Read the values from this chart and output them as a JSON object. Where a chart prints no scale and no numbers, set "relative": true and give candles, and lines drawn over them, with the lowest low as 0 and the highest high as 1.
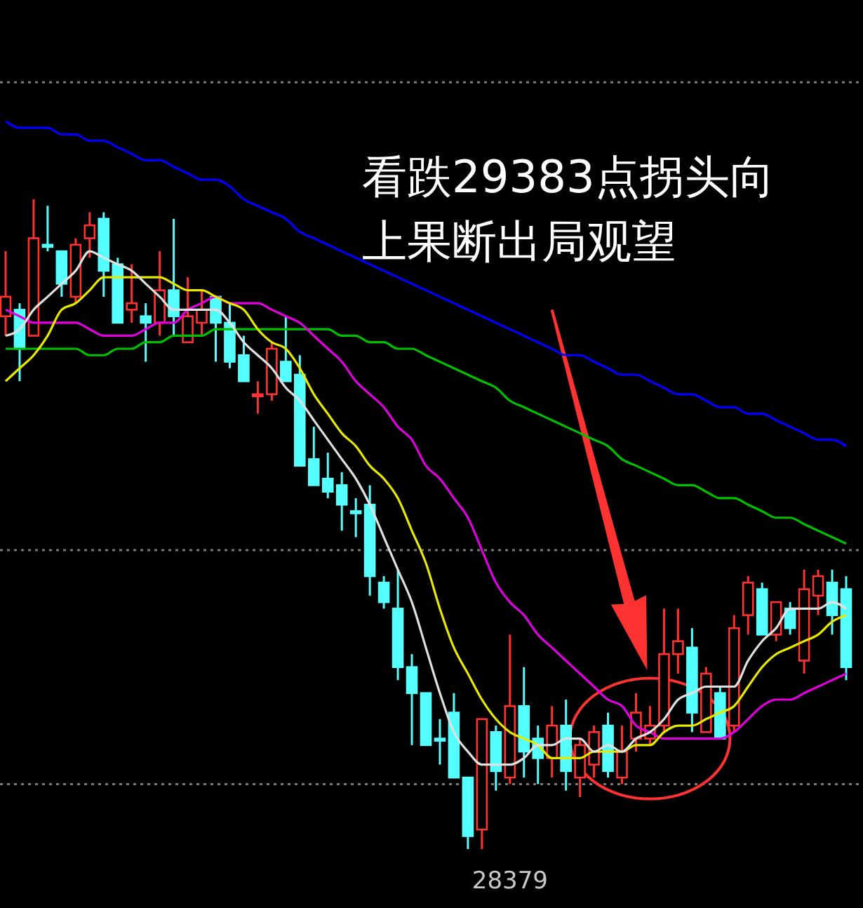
{
  "chart_data": {
    "type": "candlestick",
    "relative": true,
    "categories": [
      null,
      null,
      null,
      null,
      null,
      null,
      null,
      null,
      null,
      null,
      null,
      null,
      null,
      null,
      null,
      null,
      null,
      null,
      null,
      null,
      null,
      null,
      null,
      null,
      null,
      null,
      null,
      null,
      null,
      null,
      null,
      null,
      null,
      null,
      null,
      null,
      null,
      null,
      null,
      null,
      null,
      null,
      null,
      null,
      null,
      null,
      null,
      null,
      null,
      null,
      null,
      null,
      null,
      null,
      null,
      null,
      null,
      null,
      null,
      null,
      null
    ],
    "ohlc": [
      [
        0.82,
        0.92,
        0.79,
        0.85
      ],
      [
        0.83,
        0.84,
        0.72,
        0.77
      ],
      [
        0.79,
        1,
        0.79,
        0.94
      ],
      [
        0.93,
        0.99,
        0.92,
        0.93
      ],
      [
        0.92,
        0.92,
        0.85,
        0.87
      ],
      [
        0.85,
        0.94,
        0.84,
        0.93
      ],
      [
        0.94,
        0.98,
        0.91,
        0.96
      ],
      [
        0.97,
        0.98,
        0.85,
        0.89
      ],
      [
        0.9,
        0.91,
        0.81,
        0.81
      ],
      [
        0.83,
        0.9,
        0.81,
        0.84
      ],
      [
        0.82,
        0.84,
        0.75,
        0.81
      ],
      [
        0.81,
        0.92,
        0.79,
        0.86
      ],
      [
        0.86,
        0.97,
        0.79,
        0.82
      ],
      [
        0.78,
        0.88,
        0.78,
        0.82
      ],
      [
        0.81,
        0.86,
        0.79,
        0.83
      ],
      [
        0.85,
        0.85,
        0.75,
        0.81
      ],
      [
        0.81,
        0.84,
        0.74,
        0.75
      ],
      [
        0.76,
        0.79,
        0.72,
        0.72
      ],
      [
        0.7,
        0.72,
        0.67,
        0.7
      ],
      [
        0.7,
        0.78,
        0.69,
        0.77
      ],
      [
        0.75,
        0.82,
        0.72,
        0.72
      ],
      [
        0.73,
        0.76,
        0.59,
        0.59
      ],
      [
        0.6,
        0.65,
        0.56,
        0.56
      ],
      [
        0.57,
        0.61,
        0.54,
        0.55
      ],
      [
        0.56,
        0.58,
        0.49,
        0.53
      ],
      [
        0.52,
        0.54,
        0.48,
        0.52
      ],
      [
        0.53,
        0.56,
        0.39,
        0.42
      ],
      [
        0.41,
        0.42,
        0.37,
        0.38
      ],
      [
        0.37,
        0.43,
        0.26,
        0.28
      ],
      [
        0.28,
        0.3,
        0.16,
        0.24
      ],
      [
        0.24,
        0.24,
        0.16,
        0.16
      ],
      [
        0.17,
        0.2,
        0.13,
        0.17
      ],
      [
        0.21,
        0.24,
        0.11,
        0.11
      ],
      [
        0.11,
        0.11,
        0,
        0.02
      ],
      [
        0.03,
        0.2,
        0,
        0.2
      ],
      [
        0.18,
        0.19,
        0.09,
        0.12
      ],
      [
        0.11,
        0.33,
        0.1,
        0.22
      ],
      [
        0.22,
        0.28,
        0.11,
        0.15
      ],
      [
        0.17,
        0.19,
        0.1,
        0.14
      ],
      [
        0.14,
        0.22,
        0.11,
        0.19
      ],
      [
        0.19,
        0.23,
        0.09,
        0.12
      ],
      [
        0.11,
        0.17,
        0.08,
        0.16
      ],
      [
        0.13,
        0.19,
        0.11,
        0.18
      ],
      [
        0.19,
        0.21,
        0.11,
        0.12
      ],
      [
        0.11,
        0.19,
        0.1,
        0.15
      ],
      [
        0.17,
        0.24,
        0.15,
        0.21
      ],
      [
        0.17,
        0.22,
        0.16,
        0.19
      ],
      [
        0.19,
        0.37,
        0.18,
        0.3
      ],
      [
        0.3,
        0.37,
        0.27,
        0.32
      ],
      [
        0.31,
        0.34,
        0.18,
        0.21
      ],
      [
        0.18,
        0.28,
        0.18,
        0.27
      ],
      [
        0.24,
        0.25,
        0.17,
        0.17
      ],
      [
        0.19,
        0.36,
        0.18,
        0.34
      ],
      [
        0.36,
        0.42,
        0.33,
        0.41
      ],
      [
        0.4,
        0.41,
        0.33,
        0.33
      ],
      [
        0.33,
        0.38,
        0.32,
        0.38
      ],
      [
        0.37,
        0.38,
        0.33,
        0.34
      ],
      [
        0.29,
        0.43,
        0.27,
        0.4
      ],
      [
        0.39,
        0.43,
        0.36,
        0.42
      ],
      [
        0.41,
        0.43,
        0.33,
        0.36
      ],
      [
        0.4,
        0.42,
        0.26,
        0.28
      ]
    ],
    "colors": [
      "#ff3232",
      "#54ffff",
      "#ff3232",
      "#54ffff",
      "#54ffff",
      "#ff3232",
      "#ff3232",
      "#54ffff",
      "#54ffff",
      "#ff3232",
      "#54ffff",
      "#ff3232",
      "#54ffff",
      "#ff3232",
      "#ff3232",
      "#54ffff",
      "#54ffff",
      "#54ffff",
      "#ff3232",
      "#ff3232",
      "#54ffff",
      "#54ffff",
      "#54ffff",
      "#54ffff",
      "#54ffff",
      "#54ffff",
      "#54ffff",
      "#54ffff",
      "#54ffff",
      "#54ffff",
      "#54ffff",
      "#54ffff",
      "#54ffff",
      "#54ffff",
      "#ff3232",
      "#54ffff",
      "#ff3232",
      "#54ffff",
      "#54ffff",
      "#ff3232",
      "#54ffff",
      "#ff3232",
      "#ff3232",
      "#54ffff",
      "#ff3232",
      "#ff3232",
      "#ff3232",
      "#ff3232",
      "#ff3232",
      "#54ffff",
      "#ff3232",
      "#54ffff",
      "#ff3232",
      "#ff3232",
      "#54ffff",
      "#ff3232",
      "#54ffff",
      "#ff3232",
      "#ff3232",
      "#54ffff",
      "#54ffff"
    ],
    "series": [
      {
        "type": "line",
        "color": "#0000ff",
        "values": [
          1.12,
          1.11,
          1.11,
          1.11,
          1.1,
          1.1,
          1.09,
          1.09,
          1.08,
          1.07,
          1.06,
          1.06,
          1.05,
          1.04,
          1.03,
          1.03,
          1.02,
          1.0,
          0.99,
          0.98,
          0.97,
          0.95,
          0.94,
          0.93,
          0.92,
          0.91,
          0.9,
          0.89,
          0.88,
          0.87,
          0.86,
          0.85,
          0.84,
          0.83,
          0.82,
          0.81,
          0.8,
          0.79,
          0.78,
          0.77,
          0.76,
          0.76,
          0.75,
          0.74,
          0.73,
          0.73,
          0.72,
          0.71,
          0.7,
          0.7,
          0.69,
          0.68,
          0.68,
          0.67,
          0.67,
          0.66,
          0.65,
          0.64,
          0.63,
          0.63,
          0.62
        ]
      },
      {
        "type": "line",
        "color": "#00c000",
        "values": [
          0.77,
          0.77,
          0.77,
          0.77,
          0.77,
          0.77,
          0.76,
          0.76,
          0.77,
          0.77,
          0.78,
          0.78,
          0.79,
          0.79,
          0.79,
          0.8,
          0.8,
          0.8,
          0.8,
          0.8,
          0.8,
          0.8,
          0.8,
          0.8,
          0.79,
          0.79,
          0.78,
          0.78,
          0.77,
          0.77,
          0.76,
          0.75,
          0.74,
          0.73,
          0.72,
          0.71,
          0.69,
          0.68,
          0.67,
          0.66,
          0.65,
          0.64,
          0.63,
          0.62,
          0.6,
          0.59,
          0.58,
          0.57,
          0.56,
          0.56,
          0.55,
          0.54,
          0.54,
          0.53,
          0.52,
          0.51,
          0.51,
          0.5,
          0.49,
          0.48,
          0.47
        ]
      },
      {
        "type": "line",
        "color": "#e000e0",
        "values": [
          0.83,
          0.82,
          0.81,
          0.81,
          0.81,
          0.81,
          0.8,
          0.79,
          0.79,
          0.79,
          0.8,
          0.81,
          0.81,
          0.83,
          0.84,
          0.85,
          0.84,
          0.84,
          0.84,
          0.83,
          0.82,
          0.81,
          0.79,
          0.77,
          0.75,
          0.72,
          0.7,
          0.68,
          0.65,
          0.63,
          0.59,
          0.57,
          0.54,
          0.51,
          0.46,
          0.41,
          0.38,
          0.36,
          0.33,
          0.31,
          0.29,
          0.27,
          0.25,
          0.23,
          0.22,
          0.19,
          0.18,
          0.17,
          0.17,
          0.17,
          0.17,
          0.17,
          0.18,
          0.2,
          0.22,
          0.23,
          0.23,
          0.24,
          0.25,
          0.26,
          0.27
        ]
      },
      {
        "type": "line",
        "color": "#e8e800",
        "values": [
          0.72,
          0.74,
          0.76,
          0.79,
          0.83,
          0.84,
          0.86,
          0.88,
          0.88,
          0.88,
          0.88,
          0.88,
          0.87,
          0.86,
          0.86,
          0.85,
          0.84,
          0.83,
          0.8,
          0.78,
          0.77,
          0.74,
          0.7,
          0.67,
          0.64,
          0.62,
          0.59,
          0.57,
          0.54,
          0.49,
          0.44,
          0.37,
          0.31,
          0.27,
          0.23,
          0.2,
          0.18,
          0.17,
          0.16,
          0.14,
          0.14,
          0.14,
          0.15,
          0.15,
          0.15,
          0.16,
          0.16,
          0.18,
          0.19,
          0.19,
          0.2,
          0.21,
          0.22,
          0.25,
          0.28,
          0.3,
          0.31,
          0.32,
          0.33,
          0.35,
          0.36
        ]
      },
      {
        "type": "line",
        "color": "#e0e0e0",
        "values": [
          0.79,
          0.8,
          0.83,
          0.85,
          0.87,
          0.89,
          0.92,
          0.91,
          0.9,
          0.89,
          0.87,
          0.85,
          0.83,
          0.83,
          0.83,
          0.83,
          0.81,
          0.78,
          0.76,
          0.74,
          0.71,
          0.69,
          0.66,
          0.63,
          0.6,
          0.57,
          0.53,
          0.48,
          0.43,
          0.38,
          0.31,
          0.24,
          0.18,
          0.15,
          0.13,
          0.13,
          0.13,
          0.14,
          0.16,
          0.16,
          0.17,
          0.17,
          0.15,
          0.16,
          0.15,
          0.17,
          0.18,
          0.2,
          0.23,
          0.24,
          0.25,
          0.25,
          0.25,
          0.29,
          0.32,
          0.34,
          0.37,
          0.37,
          0.37,
          0.38,
          0.37
        ]
      }
    ],
    "ref_lines": [
      {
        "axis": "y",
        "value": 1.18,
        "color": "#7a7a7a",
        "line_style": "dotted"
      },
      {
        "axis": "y",
        "value": 0.46,
        "color": "#7a7a7a",
        "line_style": "dotted"
      },
      {
        "axis": "y",
        "value": 0.1,
        "color": "#7a7a7a",
        "line_style": "dotted"
      }
    ],
    "annotations": [
      "看跌29383点拐头向上果断出局观望",
      "28379"
    ]
  }
}
